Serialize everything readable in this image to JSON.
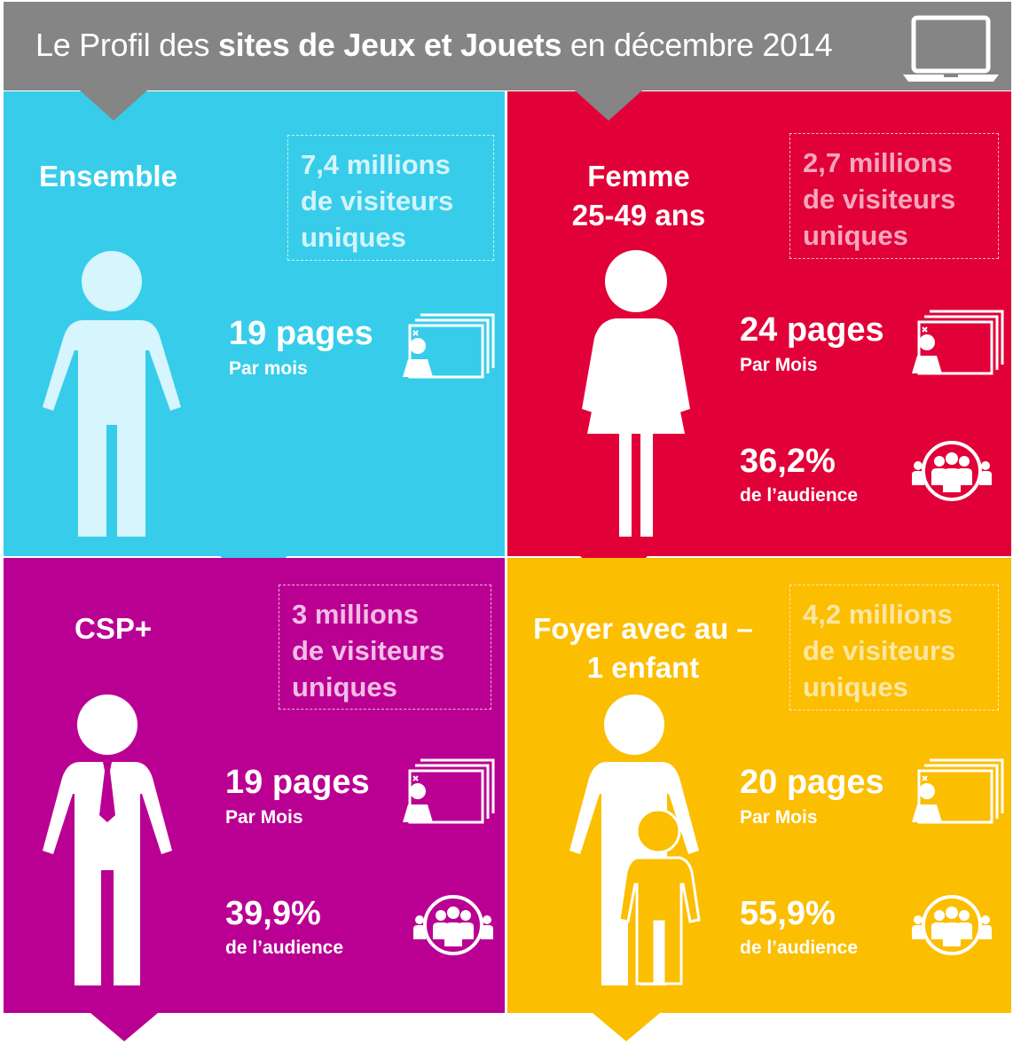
{
  "header": {
    "title_before": "Le Profil des ",
    "title_bold": "sites de Jeux et Jouets",
    "title_after": " en décembre 2014",
    "icon": "laptop-icon"
  },
  "panels": {
    "ensemble": {
      "label": "Ensemble",
      "visitors_line1": "7,4 millions",
      "visitors_line2": "de visiteurs",
      "visitors_line3": "uniques",
      "pages": "19 pages",
      "pages_unit": "Par mois",
      "color": "#37cdea"
    },
    "femme": {
      "label_line1": "Femme",
      "label_line2": "25-49 ans",
      "visitors_line1": "2,7 millions",
      "visitors_line2": "de visiteurs",
      "visitors_line3": "uniques",
      "pages": "24 pages",
      "pages_unit": "Par Mois",
      "audience": "36,2%",
      "audience_unit": "de l’audience",
      "color": "#e10038"
    },
    "csp": {
      "label": "CSP+",
      "visitors_line1": "3 millions",
      "visitors_line2": "de visiteurs",
      "visitors_line3": "uniques",
      "pages": "19 pages",
      "pages_unit": "Par Mois",
      "audience": "39,9%",
      "audience_unit": "de l’audience",
      "color": "#ba0092"
    },
    "foyer": {
      "label_line1": "Foyer avec au –",
      "label_line2": "1 enfant",
      "visitors_line1": "4,2 millions",
      "visitors_line2": "de visiteurs",
      "visitors_line3": "uniques",
      "pages": "20 pages",
      "pages_unit": "Par Mois",
      "audience": "55,9%",
      "audience_unit": "de l’audience",
      "color": "#fbbe00"
    }
  },
  "icons": {
    "pages": "web-pages-icon",
    "audience": "audience-group-icon",
    "person": "person-icon"
  }
}
